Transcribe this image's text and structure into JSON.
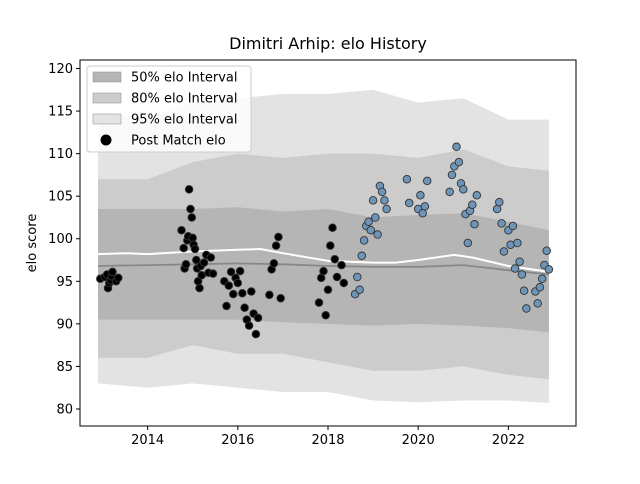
{
  "chart_data": {
    "type": "scatter",
    "title": "Dimitri Arhip: elo History",
    "xlabel": "",
    "ylabel": "elo score",
    "xlim": [
      2012.5,
      2023.5
    ],
    "ylim": [
      78,
      121
    ],
    "x_ticks": [
      2014,
      2016,
      2018,
      2020,
      2022
    ],
    "y_ticks": [
      80,
      85,
      90,
      95,
      100,
      105,
      110,
      115,
      120
    ],
    "grid": false,
    "legend_position": "top-left",
    "colors": {
      "band95": "#e3e3e3",
      "band80": "#cccccc",
      "band50": "#b5b5b5",
      "mean_line": "#ffffff",
      "median_line": "#888888",
      "points_early": "#000000",
      "points_late": "#6e95b8",
      "point_edge": "#333333"
    },
    "legend": [
      {
        "label": "50% elo Interval",
        "kind": "band50"
      },
      {
        "label": "80% elo Interval",
        "kind": "band80"
      },
      {
        "label": "95% elo Interval",
        "kind": "band95"
      },
      {
        "label": "Post Match elo",
        "kind": "point"
      }
    ],
    "bands": {
      "x": [
        2012.9,
        2014.0,
        2015.0,
        2016.0,
        2017.0,
        2018.0,
        2019.0,
        2020.0,
        2021.0,
        2022.0,
        2022.9
      ],
      "p95_upper": [
        115,
        114,
        116,
        116.5,
        117,
        117,
        117.5,
        116,
        116.5,
        114,
        114
      ],
      "p80_upper": [
        107,
        107,
        109,
        110,
        109.5,
        110,
        110,
        109.5,
        110.5,
        108.5,
        108
      ],
      "p50_upper": [
        103.5,
        103.5,
        103.5,
        103.7,
        103.2,
        103.5,
        102.5,
        102.8,
        103,
        102,
        101
      ],
      "p50_lower": [
        90.5,
        90.5,
        90.5,
        90.5,
        90.2,
        90,
        89.8,
        90,
        89.8,
        89.5,
        89
      ],
      "p80_lower": [
        86,
        86,
        87.5,
        86.5,
        86.5,
        85.5,
        84.5,
        84.5,
        85,
        84,
        83.5
      ],
      "p95_lower": [
        83,
        82.5,
        83,
        82.5,
        82,
        82,
        81,
        80.8,
        81,
        81,
        80.7
      ]
    },
    "mean_line": {
      "x": [
        2012.9,
        2013.5,
        2014.0,
        2015.0,
        2016.0,
        2016.5,
        2017.0,
        2018.0,
        2019.0,
        2019.5,
        2020.0,
        2020.8,
        2021.2,
        2022.0,
        2022.9
      ],
      "y": [
        98.2,
        98.3,
        98.2,
        98.5,
        98.7,
        98.8,
        98.3,
        97.4,
        97.2,
        97.2,
        97.5,
        98.1,
        97.8,
        96.8,
        96.1
      ]
    },
    "median_line": {
      "x": [
        2012.9,
        2014.0,
        2015.0,
        2016.0,
        2017.0,
        2018.0,
        2019.0,
        2020.0,
        2021.0,
        2022.0,
        2022.9
      ],
      "y": [
        96.8,
        96.9,
        97.0,
        97.1,
        97.0,
        96.8,
        96.7,
        96.7,
        96.9,
        96.3,
        95.8
      ]
    },
    "series": [
      {
        "name": "Post Match elo",
        "color_key": "points_early",
        "x": [
          2012.95,
          2013.05,
          2013.1,
          2013.12,
          2013.15,
          2013.18,
          2013.2,
          2013.22,
          2013.3,
          2013.35,
          2014.75,
          2014.8,
          2014.82,
          2014.85,
          2014.88,
          2014.9,
          2014.92,
          2014.95,
          2014.98,
          2015.0,
          2015.02,
          2015.05,
          2015.08,
          2015.1,
          2015.12,
          2015.15,
          2015.18,
          2015.2,
          2015.25,
          2015.3,
          2015.35,
          2015.4,
          2015.45,
          2015.7,
          2015.75,
          2015.8,
          2015.85,
          2015.9,
          2015.95,
          2016.0,
          2016.05,
          2016.1,
          2016.15,
          2016.2,
          2016.25,
          2016.3,
          2016.35,
          2016.4,
          2016.45,
          2016.7,
          2016.75,
          2016.8,
          2016.85,
          2016.9,
          2016.95,
          2017.8,
          2017.85,
          2017.9,
          2017.95,
          2018.0,
          2018.05,
          2018.1,
          2018.15,
          2018.2,
          2018.3,
          2018.35
        ],
        "y": [
          95.3,
          95.5,
          95.8,
          94.2,
          94.8,
          95.1,
          95.6,
          96.1,
          95.0,
          95.4,
          101.0,
          98.9,
          96.5,
          97.0,
          99.8,
          100.3,
          105.8,
          103.5,
          102.5,
          100.1,
          99.3,
          98.8,
          97.5,
          96.5,
          95.0,
          94.2,
          96.8,
          95.7,
          97.2,
          98.1,
          96.0,
          97.8,
          95.9,
          95.0,
          92.1,
          94.5,
          96.1,
          93.5,
          95.4,
          94.8,
          96.2,
          93.6,
          91.9,
          90.5,
          89.8,
          93.8,
          91.2,
          88.8,
          90.7,
          93.4,
          96.4,
          97.1,
          99.2,
          100.2,
          93.0,
          92.5,
          95.4,
          96.2,
          91.0,
          94.0,
          99.2,
          101.3,
          97.6,
          95.5,
          96.9,
          94.8
        ]
      },
      {
        "name": "Post Match elo",
        "color_key": "points_late",
        "x": [
          2018.6,
          2018.65,
          2018.7,
          2018.75,
          2018.8,
          2018.85,
          2018.9,
          2018.95,
          2019.0,
          2019.05,
          2019.1,
          2019.15,
          2019.2,
          2019.25,
          2019.3,
          2019.75,
          2019.8,
          2020.0,
          2020.05,
          2020.1,
          2020.15,
          2020.2,
          2020.7,
          2020.75,
          2020.8,
          2020.85,
          2020.9,
          2020.95,
          2021.0,
          2021.05,
          2021.1,
          2021.15,
          2021.2,
          2021.25,
          2021.3,
          2021.75,
          2021.8,
          2021.85,
          2021.9,
          2022.0,
          2022.05,
          2022.1,
          2022.15,
          2022.2,
          2022.25,
          2022.3,
          2022.35,
          2022.4,
          2022.6,
          2022.65,
          2022.7,
          2022.75,
          2022.8,
          2022.85,
          2022.9
        ],
        "y": [
          93.5,
          95.5,
          94.0,
          98.0,
          99.8,
          101.5,
          102.0,
          101.0,
          104.5,
          102.5,
          100.5,
          106.2,
          105.5,
          104.5,
          103.5,
          107.0,
          104.2,
          103.5,
          105.1,
          103.0,
          103.8,
          106.8,
          105.5,
          107.5,
          108.5,
          110.8,
          109.0,
          106.5,
          105.8,
          102.9,
          99.5,
          103.3,
          104.0,
          101.7,
          105.1,
          103.5,
          104.3,
          101.8,
          98.5,
          101.0,
          99.3,
          101.5,
          96.5,
          99.5,
          97.3,
          95.8,
          93.9,
          91.8,
          93.8,
          92.4,
          94.3,
          95.3,
          96.9,
          98.6,
          96.4
        ]
      }
    ]
  }
}
